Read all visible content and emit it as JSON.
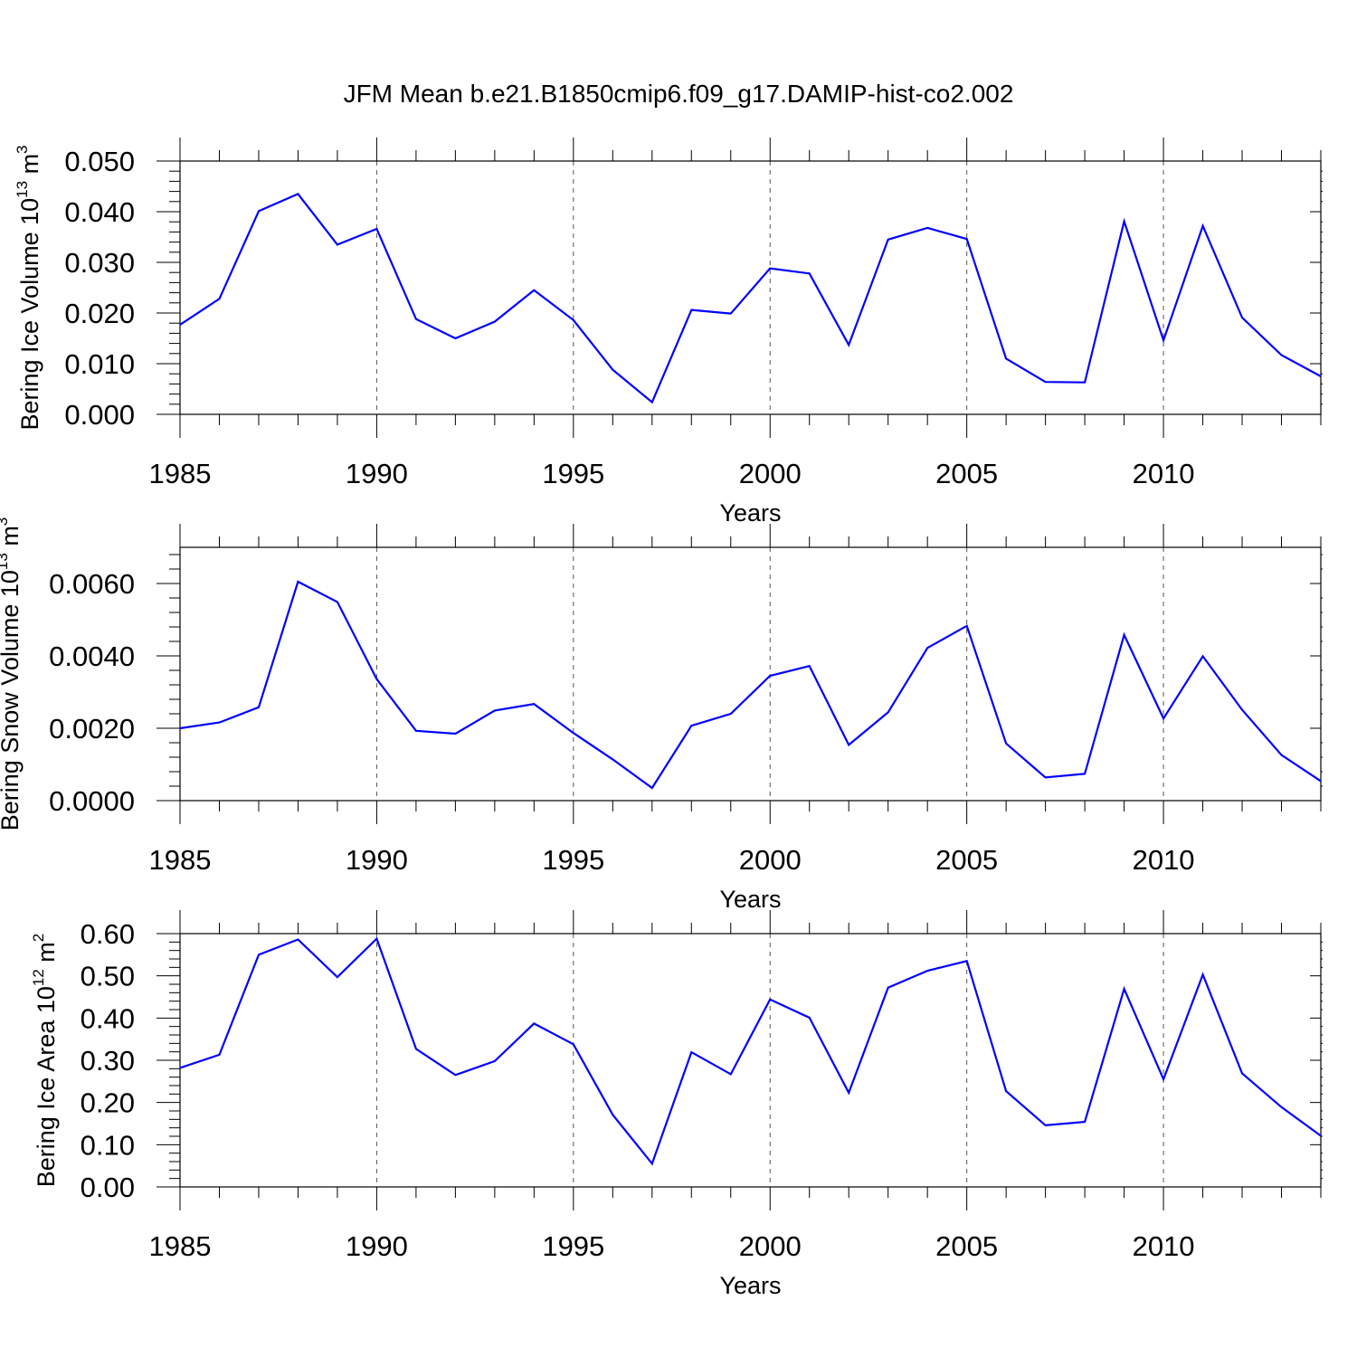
{
  "figure": {
    "title": "JFM Mean b.e21.B1850cmip6.f09_g17.DAMIP-hist-co2.002"
  },
  "chart_data": [
    {
      "type": "line",
      "title": "JFM Mean b.e21.B1850cmip6.f09_g17.DAMIP-hist-co2.002",
      "xlabel": "Years",
      "ylabel": {
        "main": "Bering Ice Volume 10",
        "exponent": "13",
        "unit": " m",
        "unit_exponent": "3"
      },
      "xlim": [
        1985,
        2014
      ],
      "ylim": [
        0,
        0.05
      ],
      "x_ticks": [
        1985,
        1990,
        1995,
        2000,
        2005,
        2010
      ],
      "x_tick_labels": [
        "1985",
        "1990",
        "1995",
        "2000",
        "2005",
        "2010"
      ],
      "y_ticks": [
        0,
        0.01,
        0.02,
        0.03,
        0.04,
        0.05
      ],
      "y_tick_labels": [
        "0.000",
        "0.010",
        "0.020",
        "0.030",
        "0.040",
        "0.050"
      ],
      "grid": "vertical dashed at major x ticks",
      "color": "#0000ff",
      "x": [
        1985,
        1986,
        1987,
        1988,
        1989,
        1990,
        1991,
        1992,
        1993,
        1994,
        1995,
        1996,
        1997,
        1998,
        1999,
        2000,
        2001,
        2002,
        2003,
        2004,
        2005,
        2006,
        2007,
        2008,
        2009,
        2010,
        2011,
        2012,
        2013,
        2014
      ],
      "values": [
        0.0177,
        0.0228,
        0.0401,
        0.0435,
        0.0335,
        0.0366,
        0.0188,
        0.015,
        0.0183,
        0.0245,
        0.0186,
        0.0088,
        0.0024,
        0.0206,
        0.0199,
        0.0288,
        0.0278,
        0.0137,
        0.0345,
        0.0368,
        0.0346,
        0.011,
        0.0064,
        0.0063,
        0.0381,
        0.0146,
        0.0372,
        0.0191,
        0.0117,
        0.0075
      ]
    },
    {
      "type": "line",
      "xlabel": "Years",
      "ylabel": {
        "main": "Bering Snow Volume 10",
        "exponent": "13",
        "unit": " m",
        "unit_exponent": "3"
      },
      "xlim": [
        1985,
        2014
      ],
      "ylim": [
        0,
        0.007
      ],
      "x_ticks": [
        1985,
        1990,
        1995,
        2000,
        2005,
        2010
      ],
      "x_tick_labels": [
        "1985",
        "1990",
        "1995",
        "2000",
        "2005",
        "2010"
      ],
      "y_ticks": [
        0,
        0.002,
        0.004,
        0.006
      ],
      "y_tick_labels": [
        "0.0000",
        "0.0020",
        "0.0040",
        "0.0060"
      ],
      "grid": "vertical dashed at major x ticks",
      "color": "#0000ff",
      "x": [
        1985,
        1986,
        1987,
        1988,
        1989,
        1990,
        1991,
        1992,
        1993,
        1994,
        1995,
        1996,
        1997,
        1998,
        1999,
        2000,
        2001,
        2002,
        2003,
        2004,
        2005,
        2006,
        2007,
        2008,
        2009,
        2010,
        2011,
        2012,
        2013,
        2014
      ],
      "values": [
        0.002,
        0.00216,
        0.00258,
        0.00605,
        0.00549,
        0.00336,
        0.00193,
        0.00185,
        0.00249,
        0.00267,
        0.00187,
        0.00114,
        0.00035,
        0.00207,
        0.0024,
        0.00345,
        0.00372,
        0.00154,
        0.00244,
        0.00422,
        0.00483,
        0.00158,
        0.00064,
        0.00074,
        0.00458,
        0.00227,
        0.00399,
        0.00251,
        0.00126,
        0.00054
      ]
    },
    {
      "type": "line",
      "xlabel": "Years",
      "ylabel": {
        "main": "Bering Ice Area 10",
        "exponent": "12",
        "unit": " m",
        "unit_exponent": "2"
      },
      "xlim": [
        1985,
        2014
      ],
      "ylim": [
        0,
        0.6
      ],
      "x_ticks": [
        1985,
        1990,
        1995,
        2000,
        2005,
        2010
      ],
      "x_tick_labels": [
        "1985",
        "1990",
        "1995",
        "2000",
        "2005",
        "2010"
      ],
      "y_ticks": [
        0,
        0.1,
        0.2,
        0.3,
        0.4,
        0.5,
        0.6
      ],
      "y_tick_labels": [
        "0.00",
        "0.10",
        "0.20",
        "0.30",
        "0.40",
        "0.50",
        "0.60"
      ],
      "grid": "vertical dashed at major x ticks",
      "color": "#0000ff",
      "x": [
        1985,
        1986,
        1987,
        1988,
        1989,
        1990,
        1991,
        1992,
        1993,
        1994,
        1995,
        1996,
        1997,
        1998,
        1999,
        2000,
        2001,
        2002,
        2003,
        2004,
        2005,
        2006,
        2007,
        2008,
        2009,
        2010,
        2011,
        2012,
        2013,
        2014
      ],
      "values": [
        0.282,
        0.313,
        0.55,
        0.586,
        0.497,
        0.588,
        0.327,
        0.265,
        0.298,
        0.387,
        0.338,
        0.171,
        0.055,
        0.319,
        0.267,
        0.444,
        0.401,
        0.223,
        0.472,
        0.512,
        0.535,
        0.227,
        0.146,
        0.154,
        0.469,
        0.255,
        0.503,
        0.269,
        0.189,
        0.121
      ]
    }
  ]
}
